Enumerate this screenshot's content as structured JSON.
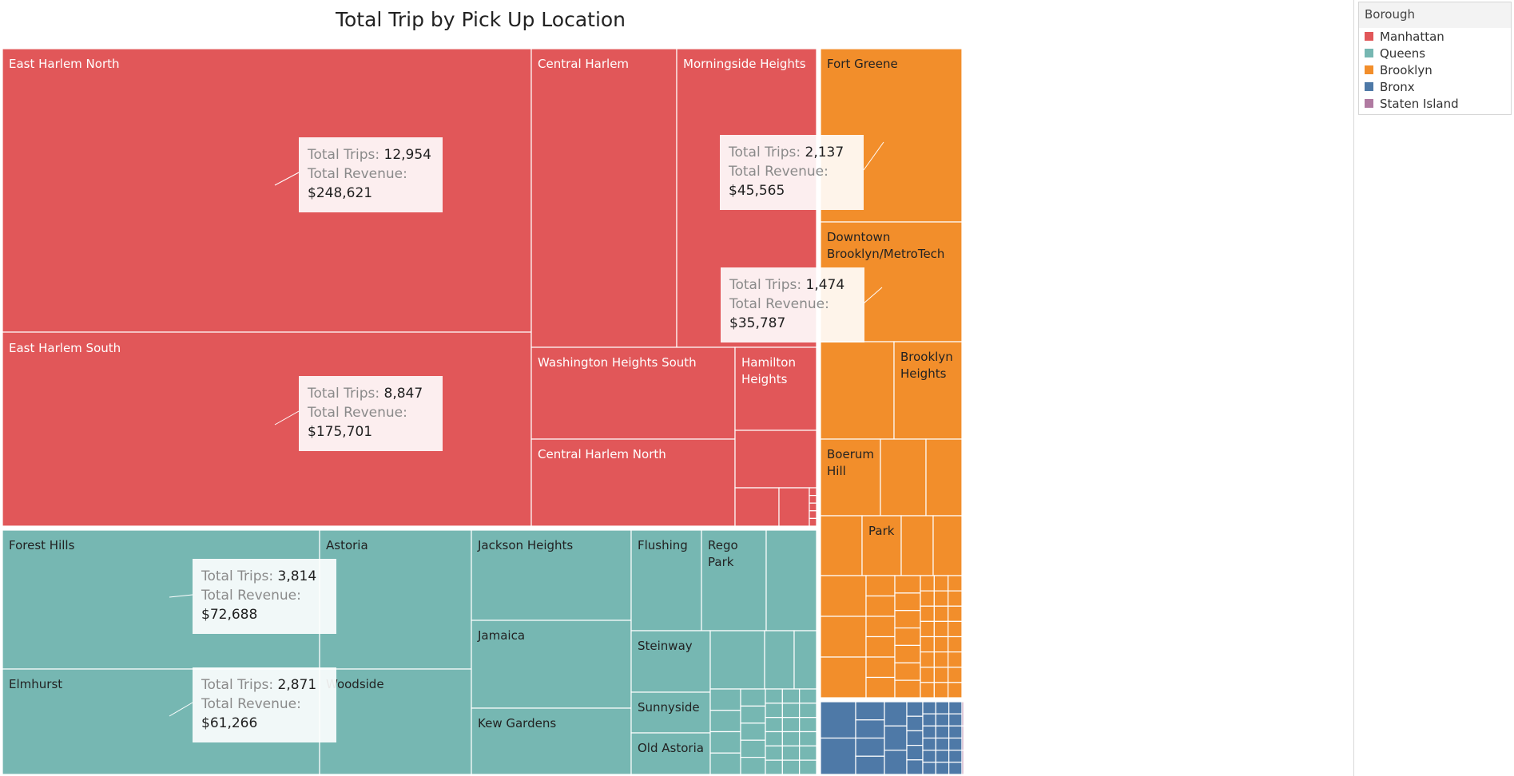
{
  "page": {
    "title": "Total Trip by Pick Up Location"
  },
  "legend": {
    "title": "Borough",
    "items": [
      {
        "label": "Manhattan",
        "color": "#e15759"
      },
      {
        "label": "Queens",
        "color": "#76b7b2"
      },
      {
        "label": "Brooklyn",
        "color": "#f28e2b"
      },
      {
        "label": "Bronx",
        "color": "#4e79a7"
      },
      {
        "label": "Staten Island",
        "color": "#b07aa1"
      }
    ]
  },
  "tooltips": [
    {
      "trips_label": "Total Trips:",
      "trips": "12,954",
      "revenue_label": "Total Revenue:",
      "revenue": "$248,621"
    },
    {
      "trips_label": "Total Trips:",
      "trips": "8,847",
      "revenue_label": "Total Revenue:",
      "revenue": "$175,701"
    },
    {
      "trips_label": "Total Trips:",
      "trips": "2,137",
      "revenue_label": "Total Revenue:",
      "revenue": "$45,565"
    },
    {
      "trips_label": "Total Trips:",
      "trips": "1,474",
      "revenue_label": "Total Revenue:",
      "revenue": "$35,787"
    },
    {
      "trips_label": "Total Trips:",
      "trips": "3,814",
      "revenue_label": "Total Revenue:",
      "revenue": "$72,688"
    },
    {
      "trips_label": "Total Trips:",
      "trips": "2,871",
      "revenue_label": "Total Revenue:",
      "revenue": "$61,266"
    }
  ],
  "chart_data": {
    "type": "treemap",
    "title": "Total Trip by Pick Up Location",
    "legend_title": "Borough",
    "legend_position": "top-right",
    "labeled_cells": [
      {
        "borough": "Manhattan",
        "zone": "East Harlem North",
        "total_trips": 12954,
        "total_revenue": 248621
      },
      {
        "borough": "Manhattan",
        "zone": "East Harlem South",
        "total_trips": 8847,
        "total_revenue": 175701
      },
      {
        "borough": "Manhattan",
        "zone": "Central Harlem"
      },
      {
        "borough": "Manhattan",
        "zone": "Morningside Heights"
      },
      {
        "borough": "Manhattan",
        "zone": "Washington Heights South"
      },
      {
        "borough": "Manhattan",
        "zone": "Hamilton Heights"
      },
      {
        "borough": "Manhattan",
        "zone": "Central Harlem North"
      },
      {
        "borough": "Brooklyn",
        "zone": "Fort Greene",
        "total_trips": 2137,
        "total_revenue": 45565
      },
      {
        "borough": "Brooklyn",
        "zone": "Downtown Brooklyn/MetroTech",
        "total_trips": 1474,
        "total_revenue": 35787
      },
      {
        "borough": "Brooklyn",
        "zone": "Brooklyn Heights"
      },
      {
        "borough": "Brooklyn",
        "zone": "Boerum Hill"
      },
      {
        "borough": "Brooklyn",
        "zone": "Park"
      },
      {
        "borough": "Queens",
        "zone": "Forest Hills",
        "total_trips": 3814,
        "total_revenue": 72688
      },
      {
        "borough": "Queens",
        "zone": "Elmhurst",
        "total_trips": 2871,
        "total_revenue": 61266
      },
      {
        "borough": "Queens",
        "zone": "Astoria"
      },
      {
        "borough": "Queens",
        "zone": "Woodside"
      },
      {
        "borough": "Queens",
        "zone": "Jackson Heights"
      },
      {
        "borough": "Queens",
        "zone": "Jamaica"
      },
      {
        "borough": "Queens",
        "zone": "Kew Gardens"
      },
      {
        "borough": "Queens",
        "zone": "Flushing"
      },
      {
        "borough": "Queens",
        "zone": "Rego Park"
      },
      {
        "borough": "Queens",
        "zone": "Steinway"
      },
      {
        "borough": "Queens",
        "zone": "Sunnyside"
      },
      {
        "borough": "Queens",
        "zone": "Old Astoria"
      }
    ]
  }
}
